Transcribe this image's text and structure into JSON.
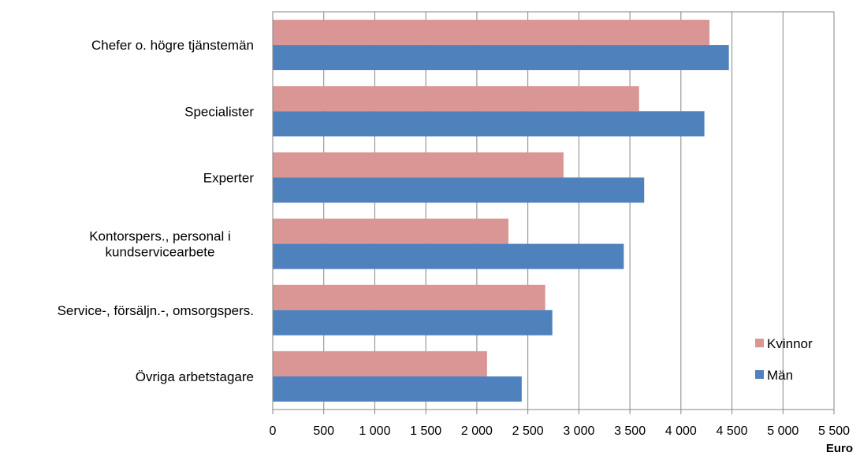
{
  "chart_data": {
    "type": "bar",
    "orientation": "horizontal",
    "categories": [
      [
        "Chefer o. högre tjänstemän"
      ],
      [
        "Specialister"
      ],
      [
        "Experter"
      ],
      [
        "Kontorspers., personal i",
        "kundservicearbete"
      ],
      [
        "Service-, försäljn.-, omsorgspers."
      ],
      [
        "Övriga arbetstagare"
      ]
    ],
    "series": [
      {
        "name": "Kvinnor",
        "color": "#d99694",
        "values": [
          4280,
          3590,
          2850,
          2310,
          2670,
          2100
        ]
      },
      {
        "name": "Män",
        "color": "#4f81bd",
        "values": [
          4470,
          4230,
          3640,
          3440,
          2740,
          2440
        ]
      }
    ],
    "xlim": [
      0,
      5500
    ],
    "xticks": [
      0,
      500,
      1000,
      1500,
      2000,
      2500,
      3000,
      3500,
      4000,
      4500,
      5000,
      5500
    ],
    "xtick_labels": [
      "0",
      "500",
      "1 000",
      "1 500",
      "2 000",
      "2 500",
      "3 000",
      "3 500",
      "4 000",
      "4 500",
      "5 000",
      "5 500"
    ],
    "xlabel": "Euro",
    "grid": true,
    "legend_position": "bottom-right"
  }
}
